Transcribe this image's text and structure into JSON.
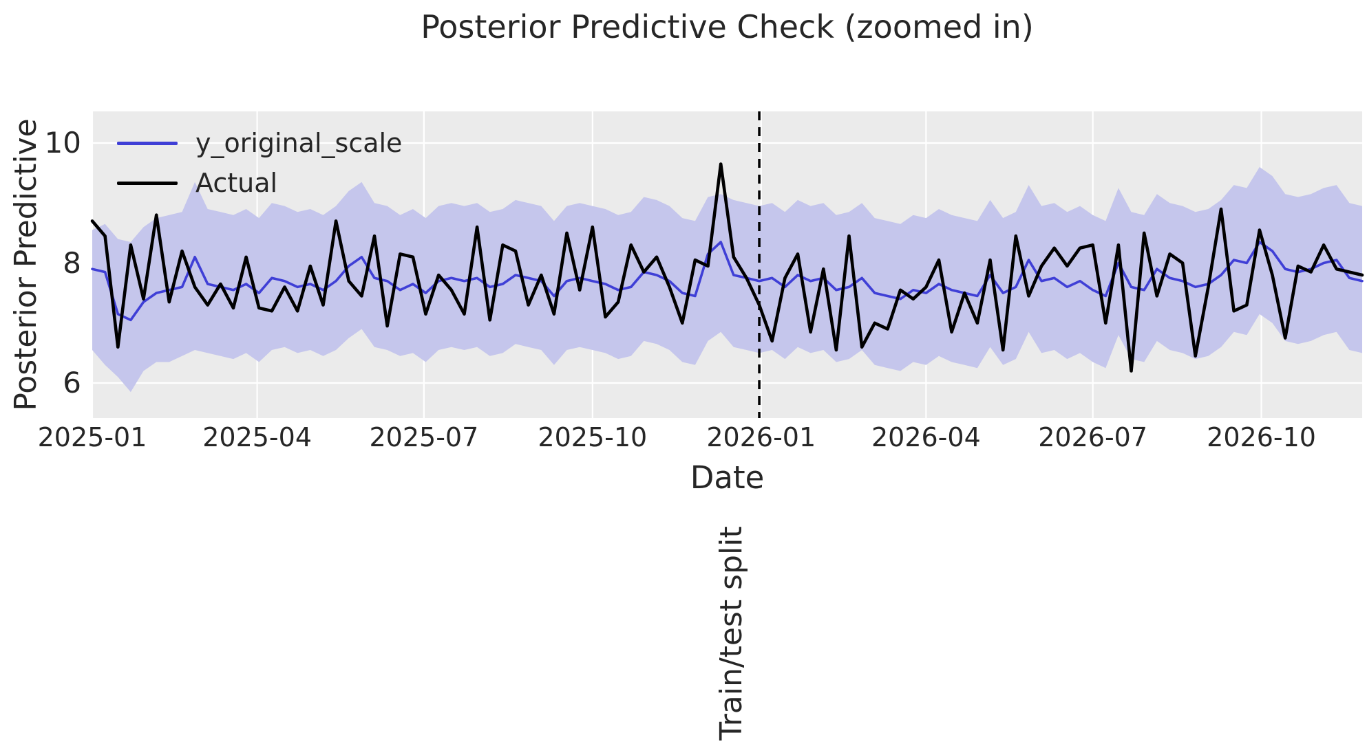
{
  "title": "Posterior Predictive Check (zoomed in)",
  "axes": {
    "xlabel": "Date",
    "ylabel": "Posterior Predictive"
  },
  "annotations": {
    "train_test_split_label": "Train/test split"
  },
  "legend": [
    {
      "label": "y_original_scale",
      "color": "#3f3fd6"
    },
    {
      "label": "Actual",
      "color": "#000000"
    }
  ],
  "colors": {
    "figure_background": "#ffffff",
    "plot_background": "#ebebeb",
    "gridline": "#ffffff",
    "band": "#c5c6ec",
    "predicted_line": "#3f3fd6",
    "actual_line": "#000000",
    "split_line": "#000000",
    "text": "#262626"
  },
  "chart_data": {
    "type": "line",
    "title": "Posterior Predictive Check (zoomed in)",
    "xlabel": "Date",
    "ylabel": "Posterior Predictive",
    "x_start": "2025-01-01",
    "x_step_days": 7,
    "x_end_approx": "2026-11-25",
    "x_tick_labels": [
      "2025-01",
      "2025-04",
      "2025-07",
      "2025-10",
      "2026-01",
      "2026-04",
      "2026-07",
      "2026-10"
    ],
    "x_tick_dates": [
      "2025-01-01",
      "2025-04-01",
      "2025-07-01",
      "2025-10-01",
      "2026-01-01",
      "2026-04-01",
      "2026-07-01",
      "2026-10-01"
    ],
    "y_ticks": [
      6,
      8,
      10
    ],
    "ylim": [
      5.42,
      10.53
    ],
    "grid": true,
    "legend_position": "upper left",
    "split_index": 52,
    "split_date": "2025-12-31",
    "series": [
      {
        "name": "y_original_scale",
        "color": "#3f3fd6",
        "values": [
          7.9,
          7.85,
          7.15,
          7.05,
          7.35,
          7.5,
          7.55,
          7.6,
          8.1,
          7.65,
          7.6,
          7.55,
          7.65,
          7.5,
          7.75,
          7.7,
          7.6,
          7.65,
          7.55,
          7.7,
          7.95,
          8.1,
          7.75,
          7.7,
          7.55,
          7.65,
          7.5,
          7.7,
          7.75,
          7.7,
          7.75,
          7.6,
          7.65,
          7.8,
          7.75,
          7.7,
          7.45,
          7.7,
          7.75,
          7.7,
          7.65,
          7.55,
          7.6,
          7.85,
          7.8,
          7.7,
          7.5,
          7.45,
          8.15,
          8.35,
          7.8,
          7.75,
          7.7,
          7.75,
          7.6,
          7.8,
          7.7,
          7.75,
          7.55,
          7.6,
          7.75,
          7.5,
          7.45,
          7.4,
          7.55,
          7.5,
          7.65,
          7.55,
          7.5,
          7.45,
          7.8,
          7.5,
          7.6,
          8.05,
          7.7,
          7.75,
          7.6,
          7.7,
          7.55,
          7.45,
          8.0,
          7.6,
          7.55,
          7.9,
          7.75,
          7.7,
          7.6,
          7.65,
          7.8,
          8.05,
          8.0,
          8.35,
          8.2,
          7.9,
          7.85,
          7.9,
          8.0,
          8.05,
          7.75,
          7.7
        ]
      },
      {
        "name": "Actual",
        "color": "#000000",
        "values": [
          8.7,
          8.45,
          6.6,
          8.3,
          7.4,
          8.8,
          7.35,
          8.2,
          7.6,
          7.3,
          7.65,
          7.25,
          8.1,
          7.25,
          7.2,
          7.6,
          7.2,
          7.95,
          7.3,
          8.7,
          7.7,
          7.45,
          8.45,
          6.95,
          8.15,
          8.1,
          7.15,
          7.8,
          7.55,
          7.15,
          8.6,
          7.05,
          8.3,
          8.2,
          7.3,
          7.8,
          7.15,
          8.5,
          7.55,
          8.6,
          7.1,
          7.35,
          8.3,
          7.85,
          8.1,
          7.6,
          7.0,
          8.05,
          7.95,
          9.65,
          8.1,
          7.75,
          7.3,
          6.7,
          7.75,
          8.15,
          6.85,
          7.9,
          6.55,
          8.45,
          6.6,
          7.0,
          6.9,
          7.55,
          7.4,
          7.6,
          8.05,
          6.85,
          7.5,
          7.0,
          8.05,
          6.55,
          8.45,
          7.45,
          7.95,
          8.25,
          7.95,
          8.25,
          8.3,
          7.0,
          8.3,
          6.2,
          8.5,
          7.45,
          8.15,
          8.0,
          6.45,
          7.6,
          8.9,
          7.2,
          7.3,
          8.55,
          7.8,
          6.75,
          7.95,
          7.85,
          8.3,
          7.9,
          7.85,
          7.8
        ]
      }
    ],
    "band": {
      "name": "posterior_predictive_interval",
      "color": "#c5c6ec",
      "lower": [
        6.55,
        6.3,
        6.1,
        5.85,
        6.2,
        6.35,
        6.35,
        6.45,
        6.55,
        6.5,
        6.45,
        6.4,
        6.5,
        6.35,
        6.55,
        6.6,
        6.5,
        6.55,
        6.45,
        6.55,
        6.75,
        6.9,
        6.6,
        6.55,
        6.45,
        6.5,
        6.35,
        6.55,
        6.6,
        6.55,
        6.6,
        6.45,
        6.5,
        6.65,
        6.6,
        6.55,
        6.3,
        6.55,
        6.6,
        6.55,
        6.5,
        6.4,
        6.45,
        6.7,
        6.65,
        6.55,
        6.35,
        6.3,
        6.7,
        6.85,
        6.6,
        6.55,
        6.5,
        6.55,
        6.4,
        6.6,
        6.5,
        6.55,
        6.35,
        6.4,
        6.55,
        6.3,
        6.25,
        6.2,
        6.35,
        6.3,
        6.45,
        6.35,
        6.3,
        6.25,
        6.6,
        6.3,
        6.4,
        6.85,
        6.5,
        6.55,
        6.4,
        6.5,
        6.35,
        6.25,
        6.8,
        6.4,
        6.35,
        6.7,
        6.55,
        6.5,
        6.4,
        6.45,
        6.6,
        6.85,
        6.8,
        7.15,
        7.0,
        6.7,
        6.65,
        6.7,
        6.8,
        6.85,
        6.55,
        6.5
      ],
      "upper": [
        8.55,
        8.65,
        8.4,
        8.35,
        8.6,
        8.75,
        8.8,
        8.85,
        9.35,
        8.9,
        8.85,
        8.8,
        8.9,
        8.75,
        9.0,
        8.95,
        8.85,
        8.9,
        8.8,
        8.95,
        9.2,
        9.35,
        9.0,
        8.95,
        8.8,
        8.9,
        8.75,
        8.95,
        9.0,
        8.95,
        9.0,
        8.85,
        8.9,
        9.05,
        9.0,
        8.95,
        8.7,
        8.95,
        9.0,
        8.95,
        8.9,
        8.8,
        8.85,
        9.1,
        9.05,
        8.95,
        8.75,
        8.7,
        9.1,
        9.15,
        9.05,
        9.0,
        8.95,
        9.0,
        8.85,
        9.05,
        8.95,
        9.0,
        8.8,
        8.85,
        9.0,
        8.75,
        8.7,
        8.65,
        8.8,
        8.75,
        8.9,
        8.8,
        8.75,
        8.7,
        9.05,
        8.75,
        8.85,
        9.3,
        8.95,
        9.0,
        8.85,
        8.95,
        8.8,
        8.7,
        9.25,
        8.85,
        8.8,
        9.15,
        9.0,
        8.95,
        8.85,
        8.9,
        9.05,
        9.3,
        9.25,
        9.6,
        9.45,
        9.15,
        9.1,
        9.15,
        9.25,
        9.3,
        9.0,
        8.95
      ]
    }
  }
}
